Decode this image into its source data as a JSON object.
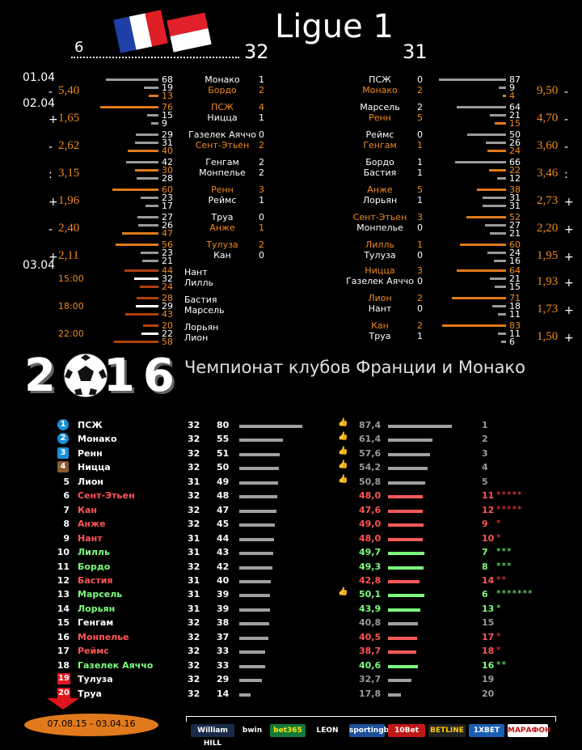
{
  "header": {
    "title": "Ligue 1",
    "played_left": "6",
    "round_left": "32",
    "round_right": "31"
  },
  "subtitle": "Чемпионат клубов Франции и Монако",
  "year_graphic": "2016",
  "date_range": "07.08.15 - 03.04.16",
  "left_col": {
    "dates": [
      "01.04",
      "02.04",
      "03.04"
    ],
    "rows": [
      {
        "sign": "-",
        "odd": "5,40",
        "nums": [
          "68",
          "19",
          "13"
        ],
        "teams": [
          {
            "name": "Монако",
            "score": "1",
            "hl": false
          },
          {
            "name": "Бордо",
            "score": "2",
            "hl": true
          }
        ]
      },
      {
        "sign": "+",
        "odd": "1,65",
        "nums": [
          "76",
          "15",
          "9"
        ],
        "teams": [
          {
            "name": "ПСЖ",
            "score": "4",
            "hl": true
          },
          {
            "name": "Ницца",
            "score": "1",
            "hl": false
          }
        ]
      },
      {
        "sign": "-",
        "odd": "2,62",
        "nums": [
          "29",
          "31",
          "40"
        ],
        "teams": [
          {
            "name": "Газелек Аяччо",
            "score": "0",
            "hl": false
          },
          {
            "name": "Сент-Этьен",
            "score": "2",
            "hl": true
          }
        ]
      },
      {
        "sign": ":",
        "odd": "3,15",
        "nums": [
          "42",
          "30",
          "28"
        ],
        "teams": [
          {
            "name": "Генгам",
            "score": "2",
            "hl": false
          },
          {
            "name": "Монпелье",
            "score": "2",
            "hl": false
          }
        ]
      },
      {
        "sign": "+",
        "odd": "1,96",
        "nums": [
          "60",
          "23",
          "17"
        ],
        "teams": [
          {
            "name": "Ренн",
            "score": "3",
            "hl": true
          },
          {
            "name": "Реймс",
            "score": "1",
            "hl": false
          }
        ]
      },
      {
        "sign": "-",
        "odd": "2,40",
        "nums": [
          "27",
          "26",
          "47"
        ],
        "teams": [
          {
            "name": "Труа",
            "score": "0",
            "hl": false
          },
          {
            "name": "Анже",
            "score": "1",
            "hl": true
          }
        ]
      },
      {
        "sign": "+",
        "odd": "2,11",
        "nums": [
          "56",
          "23",
          "21"
        ],
        "teams": [
          {
            "name": "Тулуза",
            "score": "2",
            "hl": true
          },
          {
            "name": "Кан",
            "score": "0",
            "hl": false
          }
        ]
      },
      {
        "sign": "",
        "odd": "",
        "time": "15:00",
        "nums": [
          "44",
          "32",
          "24"
        ],
        "teams": [
          {
            "name": "Нант",
            "score": "",
            "hl": false
          },
          {
            "name": "Лилль",
            "score": "",
            "hl": false
          }
        ]
      },
      {
        "sign": "",
        "odd": "",
        "time": "18:00",
        "nums": [
          "28",
          "29",
          "43"
        ],
        "teams": [
          {
            "name": "Бастия",
            "score": "",
            "hl": false
          },
          {
            "name": "Марсель",
            "score": "",
            "hl": false
          }
        ]
      },
      {
        "sign": "",
        "odd": "",
        "time": "22:00",
        "nums": [
          "20",
          "22",
          "58"
        ],
        "teams": [
          {
            "name": "Лорьян",
            "score": "",
            "hl": false
          },
          {
            "name": "Лион",
            "score": "",
            "hl": false
          }
        ]
      }
    ]
  },
  "right_col": {
    "rows": [
      {
        "sign": "-",
        "odd": "9,50",
        "nums": [
          "87",
          "9",
          "4"
        ],
        "teams": [
          {
            "name": "ПСЖ",
            "score": "0",
            "hl": false
          },
          {
            "name": "Монако",
            "score": "2",
            "hl": true
          }
        ]
      },
      {
        "sign": "-",
        "odd": "4,70",
        "nums": [
          "64",
          "21",
          "15"
        ],
        "teams": [
          {
            "name": "Марсель",
            "score": "2",
            "hl": false
          },
          {
            "name": "Ренн",
            "score": "5",
            "hl": true
          }
        ]
      },
      {
        "sign": "-",
        "odd": "3,60",
        "nums": [
          "50",
          "26",
          "24"
        ],
        "teams": [
          {
            "name": "Реймс",
            "score": "0",
            "hl": false
          },
          {
            "name": "Генгам",
            "score": "1",
            "hl": true
          }
        ]
      },
      {
        "sign": ":",
        "odd": "3,46",
        "nums": [
          "66",
          "22",
          "12"
        ],
        "teams": [
          {
            "name": "Бордо",
            "score": "1",
            "hl": false
          },
          {
            "name": "Бастия",
            "score": "1",
            "hl": false
          }
        ]
      },
      {
        "sign": "+",
        "odd": "2,73",
        "nums": [
          "38",
          "31",
          "31"
        ],
        "teams": [
          {
            "name": "Анже",
            "score": "5",
            "hl": true
          },
          {
            "name": "Лорьян",
            "score": "1",
            "hl": false
          }
        ]
      },
      {
        "sign": "+",
        "odd": "2,20",
        "nums": [
          "52",
          "27",
          "21"
        ],
        "teams": [
          {
            "name": "Сент-Этьен",
            "score": "3",
            "hl": true
          },
          {
            "name": "Монпелье",
            "score": "0",
            "hl": false
          }
        ]
      },
      {
        "sign": "+",
        "odd": "1,95",
        "nums": [
          "60",
          "24",
          "16"
        ],
        "teams": [
          {
            "name": "Лилль",
            "score": "1",
            "hl": true
          },
          {
            "name": "Тулуза",
            "score": "0",
            "hl": false
          }
        ]
      },
      {
        "sign": "+",
        "odd": "1,93",
        "nums": [
          "64",
          "21",
          "15"
        ],
        "teams": [
          {
            "name": "Ницца",
            "score": "3",
            "hl": true
          },
          {
            "name": "Газелек Аяччо",
            "score": "0",
            "hl": false
          }
        ]
      },
      {
        "sign": "+",
        "odd": "1,73",
        "nums": [
          "71",
          "18",
          "11"
        ],
        "teams": [
          {
            "name": "Лион",
            "score": "2",
            "hl": true
          },
          {
            "name": "Нант",
            "score": "0",
            "hl": false
          }
        ]
      },
      {
        "sign": "+",
        "odd": "1,50",
        "nums": [
          "83",
          "11",
          "6"
        ],
        "teams": [
          {
            "name": "Кан",
            "score": "2",
            "hl": true
          },
          {
            "name": "Труа",
            "score": "1",
            "hl": false
          }
        ]
      }
    ]
  },
  "table": [
    {
      "pos": "1",
      "team": "ПСЖ",
      "played": "32",
      "pts": "80",
      "pct": "87,4",
      "rank": "1",
      "stars": "",
      "color": "white",
      "badge": "blue",
      "thumb": true
    },
    {
      "pos": "2",
      "team": "Монако",
      "played": "32",
      "pts": "55",
      "pct": "61,4",
      "rank": "2",
      "stars": "",
      "color": "white",
      "badge": "blue",
      "thumb": true
    },
    {
      "pos": "3",
      "team": "Ренн",
      "played": "32",
      "pts": "51",
      "pct": "57,6",
      "rank": "3",
      "stars": "",
      "color": "white",
      "badge": "blue-sq",
      "thumb": true
    },
    {
      "pos": "4",
      "team": "Ницца",
      "played": "32",
      "pts": "50",
      "pct": "54,2",
      "rank": "4",
      "stars": "",
      "color": "white",
      "badge": "brown",
      "thumb": true
    },
    {
      "pos": "5",
      "team": "Лион",
      "played": "31",
      "pts": "49",
      "pct": "50,8",
      "rank": "5",
      "stars": "",
      "color": "white",
      "badge": "",
      "thumb": true
    },
    {
      "pos": "6",
      "team": "Сент-Этьен",
      "played": "32",
      "pts": "48",
      "pct": "48,0",
      "rank": "11",
      "stars": "*****",
      "color": "red",
      "badge": "",
      "thumb": false
    },
    {
      "pos": "7",
      "team": "Кан",
      "played": "32",
      "pts": "47",
      "pct": "47,6",
      "rank": "12",
      "stars": "*****",
      "color": "red",
      "badge": "",
      "thumb": false
    },
    {
      "pos": "8",
      "team": "Анже",
      "played": "32",
      "pts": "45",
      "pct": "49,0",
      "rank": "9",
      "stars": "*",
      "color": "red",
      "badge": "",
      "thumb": false
    },
    {
      "pos": "9",
      "team": "Нант",
      "played": "31",
      "pts": "44",
      "pct": "48,0",
      "rank": "10",
      "stars": "*",
      "color": "red",
      "badge": "",
      "thumb": false
    },
    {
      "pos": "10",
      "team": "Лилль",
      "played": "31",
      "pts": "43",
      "pct": "49,7",
      "rank": "7",
      "stars": "***",
      "color": "green",
      "badge": "",
      "thumb": false
    },
    {
      "pos": "11",
      "team": "Бордо",
      "played": "32",
      "pts": "42",
      "pct": "49,3",
      "rank": "8",
      "stars": "***",
      "color": "green",
      "badge": "",
      "thumb": false
    },
    {
      "pos": "12",
      "team": "Бастия",
      "played": "31",
      "pts": "40",
      "pct": "42,8",
      "rank": "14",
      "stars": "**",
      "color": "red",
      "badge": "",
      "thumb": false
    },
    {
      "pos": "13",
      "team": "Марсель",
      "played": "31",
      "pts": "39",
      "pct": "50,1",
      "rank": "6",
      "stars": "*******",
      "color": "green",
      "badge": "",
      "thumb": true
    },
    {
      "pos": "14",
      "team": "Лорьян",
      "played": "31",
      "pts": "39",
      "pct": "43,9",
      "rank": "13",
      "stars": "*",
      "color": "green",
      "badge": "",
      "thumb": false
    },
    {
      "pos": "15",
      "team": "Генгам",
      "played": "32",
      "pts": "38",
      "pct": "40,8",
      "rank": "15",
      "stars": "",
      "color": "white",
      "badge": "",
      "thumb": false
    },
    {
      "pos": "16",
      "team": "Монпелье",
      "played": "32",
      "pts": "37",
      "pct": "40,5",
      "rank": "17",
      "stars": "*",
      "color": "red",
      "badge": "",
      "thumb": false
    },
    {
      "pos": "17",
      "team": "Реймс",
      "played": "32",
      "pts": "33",
      "pct": "38,7",
      "rank": "18",
      "stars": "*",
      "color": "red",
      "badge": "",
      "thumb": false
    },
    {
      "pos": "18",
      "team": "Газелек Аяччо",
      "played": "32",
      "pts": "33",
      "pct": "40,6",
      "rank": "16",
      "stars": "**",
      "color": "green",
      "badge": "",
      "thumb": false
    },
    {
      "pos": "19",
      "team": "Тулуза",
      "played": "32",
      "pts": "29",
      "pct": "32,7",
      "rank": "19",
      "stars": "",
      "color": "white",
      "badge": "red",
      "thumb": false
    },
    {
      "pos": "20",
      "team": "Труа",
      "played": "32",
      "pts": "14",
      "pct": "17,8",
      "rank": "20",
      "stars": "",
      "color": "white",
      "badge": "red",
      "thumb": false
    }
  ],
  "sponsors": [
    {
      "name": "William HILL",
      "bg": "#1a2b4a",
      "fg": "#ffffff"
    },
    {
      "name": "bwin",
      "bg": "#000000",
      "fg": "#ffffff"
    },
    {
      "name": "bet365",
      "bg": "#127a3a",
      "fg": "#ffe400"
    },
    {
      "name": "LEON",
      "bg": "#000000",
      "fg": "#ffffff"
    },
    {
      "name": "sportingbet",
      "bg": "#1d4f9a",
      "fg": "#ffffff"
    },
    {
      "name": "10Bet",
      "bg": "#c11818",
      "fg": "#ffffff"
    },
    {
      "name": "BETLINE",
      "bg": "#222222",
      "fg": "#ffcc00"
    },
    {
      "name": "1XBET",
      "bg": "#1a5fb4",
      "fg": "#ffffff"
    },
    {
      "name": "МАРАФОН",
      "bg": "#ffffff",
      "fg": "#c01010"
    }
  ],
  "colors": {
    "accent": "#f08a1c",
    "loss": "#ff5555",
    "gain": "#7dff7d",
    "bar": "#9a9a9a"
  }
}
